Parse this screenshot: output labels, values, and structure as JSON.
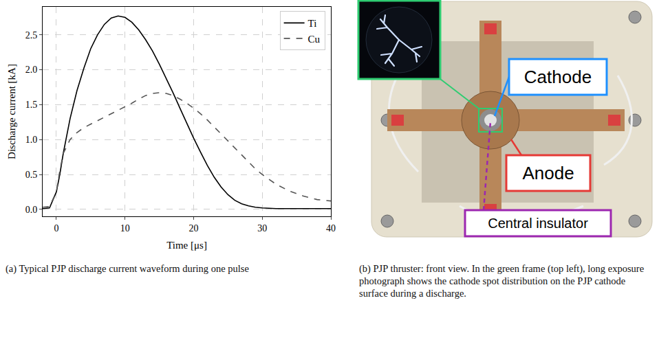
{
  "chart_data": {
    "type": "line",
    "x_label": "Time [μs]",
    "y_label": "Discharge current [kA]",
    "x": [
      -2,
      -1,
      0,
      0.5,
      1,
      2,
      3,
      4,
      5,
      6,
      7,
      8,
      9,
      10,
      11,
      12,
      13,
      14,
      15,
      16,
      17,
      18,
      19,
      20,
      21,
      22,
      23,
      24,
      25,
      26,
      27,
      28,
      29,
      30,
      32,
      34,
      36,
      38,
      40
    ],
    "series": [
      {
        "name": "Ti",
        "color": "#000000",
        "line_style": "solid",
        "values": [
          0.01,
          0.02,
          0.25,
          0.5,
          0.8,
          1.3,
          1.7,
          2.02,
          2.3,
          2.5,
          2.65,
          2.74,
          2.77,
          2.75,
          2.68,
          2.57,
          2.43,
          2.27,
          2.08,
          1.88,
          1.67,
          1.45,
          1.23,
          1.02,
          0.82,
          0.63,
          0.46,
          0.32,
          0.21,
          0.13,
          0.08,
          0.05,
          0.03,
          0.02,
          0.01,
          0.01,
          0.01,
          0.01,
          0.01
        ]
      },
      {
        "name": "Cu",
        "color": "#555555",
        "line_style": "dash",
        "values": [
          0.03,
          0.04,
          0.25,
          0.55,
          0.8,
          1.0,
          1.1,
          1.17,
          1.22,
          1.27,
          1.32,
          1.37,
          1.42,
          1.47,
          1.52,
          1.58,
          1.63,
          1.66,
          1.67,
          1.66,
          1.63,
          1.58,
          1.52,
          1.45,
          1.37,
          1.28,
          1.18,
          1.08,
          0.97,
          0.87,
          0.77,
          0.67,
          0.58,
          0.5,
          0.36,
          0.26,
          0.19,
          0.14,
          0.12
        ]
      }
    ],
    "xlim": [
      -2,
      40
    ],
    "ylim": [
      -0.1,
      2.9
    ],
    "xticks": [
      0,
      10,
      20,
      30,
      40
    ],
    "yticks": [
      {
        "value": 0,
        "label": "0.0"
      },
      0.5,
      {
        "value": 1,
        "label": "1.0"
      },
      1.5,
      {
        "value": 2,
        "label": "2.0"
      },
      2.5
    ],
    "grid": true,
    "legend": "upper right"
  },
  "panel_b": {
    "labels": [
      "Cathode",
      "Anode",
      "Central insulator"
    ]
  },
  "captions": {
    "a": "(a) Typical PJP discharge current waveform during one pulse",
    "b": "(b) PJP thruster: front view. In the green frame (top left), long exposure photograph shows the cathode spot distribution on the PJP cathode surface during a discharge."
  }
}
